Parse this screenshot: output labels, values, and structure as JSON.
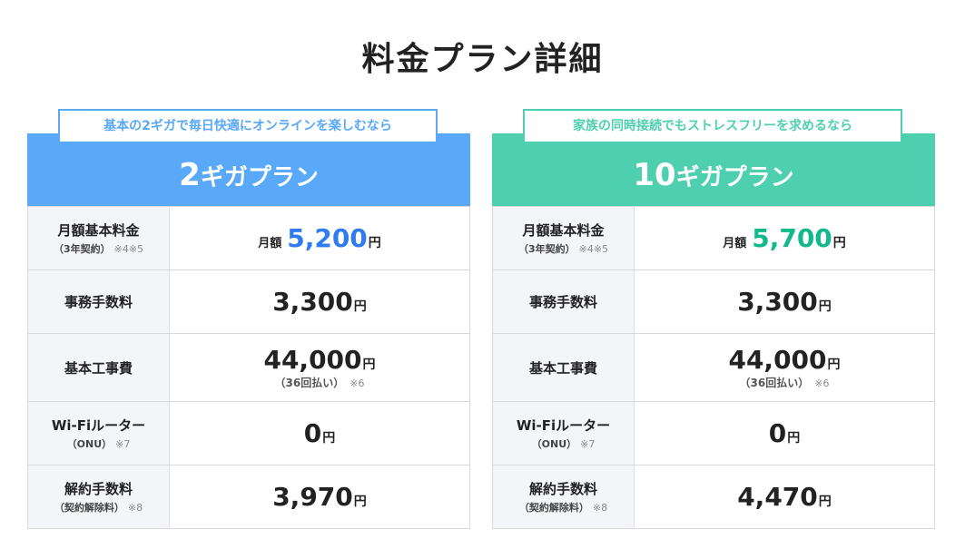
{
  "page": {
    "title": "料金プラン詳細"
  },
  "labels": {
    "monthly": "月額基本料金",
    "monthly_sub": "（3年契約）",
    "monthly_note": "※4※5",
    "admin_fee": "事務手数料",
    "install_fee": "基本工事費",
    "router": "Wi-Fiルーター",
    "router_sub": "（ONU）",
    "router_note": "※7",
    "cancel_fee": "解約手数料",
    "cancel_sub": "（契約解除料）",
    "cancel_note": "※8"
  },
  "plans": [
    {
      "tagline": "基本の2ギガで毎日快適にオンラインを楽しむなら",
      "name_num": "2",
      "name_rest": "ギガプラン",
      "monthly_prefix": "月額",
      "monthly_value": "5,200",
      "admin_value": "3,300",
      "install_value": "44,000",
      "install_sub": "（36回払い）",
      "install_note": "※6",
      "router_value": "0",
      "cancel_value": "3,970",
      "unit": "円",
      "accent": "#5aa8f8"
    },
    {
      "tagline": "家族の同時接続でもストレスフリーを求めるなら",
      "name_num": "10",
      "name_rest": "ギガプラン",
      "monthly_prefix": "月額",
      "monthly_value": "5,700",
      "admin_value": "3,300",
      "install_value": "44,000",
      "install_sub": "（36回払い）",
      "install_note": "※6",
      "router_value": "0",
      "cancel_value": "4,470",
      "unit": "円",
      "accent": "#4ecfb0"
    }
  ]
}
